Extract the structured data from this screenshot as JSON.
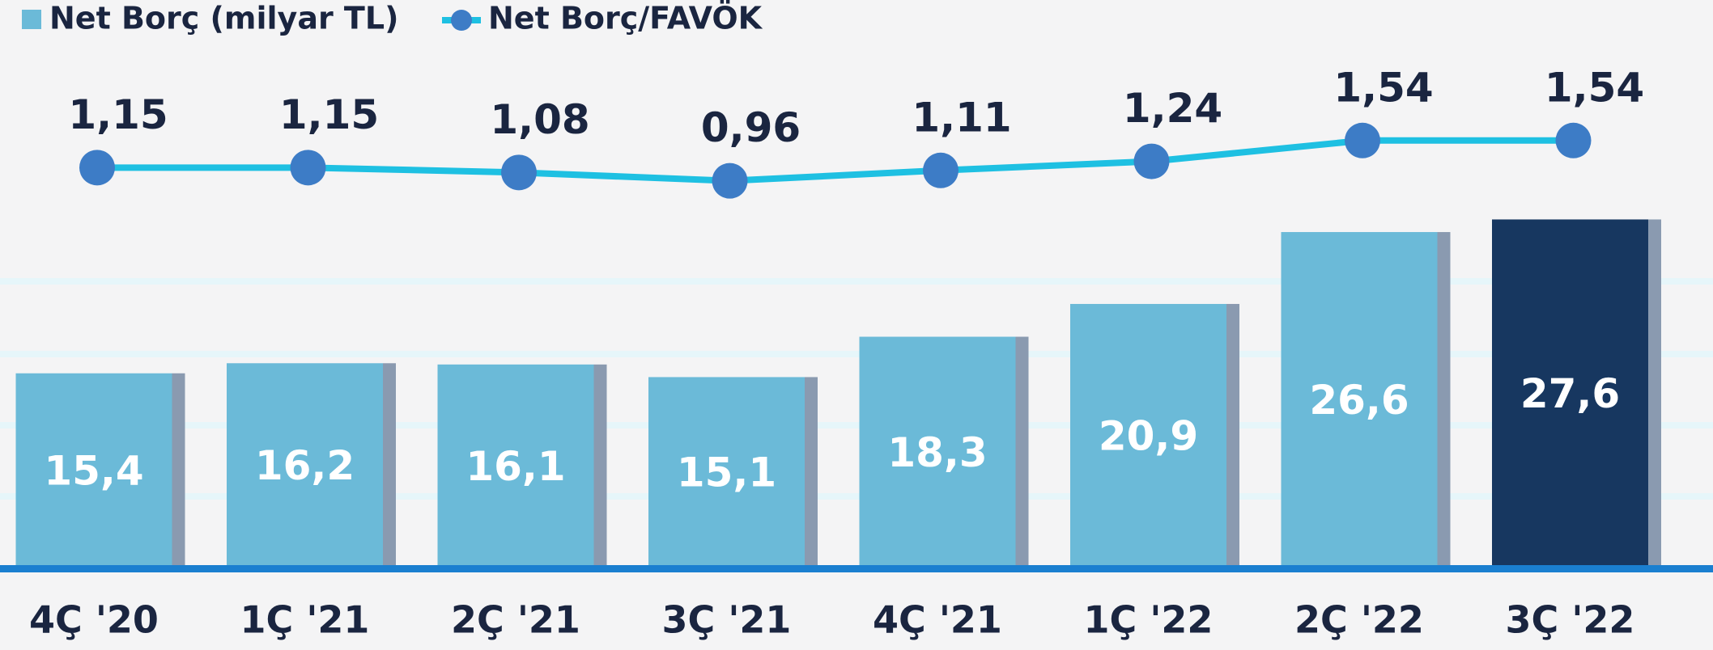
{
  "chart_data": {
    "type": "bar",
    "categories": [
      "4Ç '20",
      "1Ç '21",
      "2Ç '21",
      "3Ç '21",
      "4Ç '21",
      "1Ç '22",
      "2Ç '22",
      "3Ç '22"
    ],
    "series": [
      {
        "name": "Net Borç (milyar TL)",
        "type": "bar",
        "color": "#6bbad8",
        "colors": [
          "#6bbad8",
          "#6bbad8",
          "#6bbad8",
          "#6bbad8",
          "#6bbad8",
          "#6bbad8",
          "#6bbad8",
          "#173760"
        ],
        "values": [
          15.4,
          16.2,
          16.1,
          15.1,
          18.3,
          20.9,
          26.6,
          27.6
        ],
        "value_labels": [
          "15,4",
          "16,2",
          "16,1",
          "15,1",
          "18,3",
          "20,9",
          "26,6",
          "27,6"
        ]
      },
      {
        "name": "Net Borç/FAVÖK",
        "type": "line",
        "axis": "y2",
        "color": "#1ec0e2",
        "marker_color": "#3d7cc6",
        "values": [
          1.15,
          1.15,
          1.08,
          0.96,
          1.11,
          1.24,
          1.54,
          1.54
        ],
        "value_labels": [
          "1,15",
          "1,15",
          "1,08",
          "0,96",
          "1,11",
          "1,24",
          "1,54",
          "1,54"
        ]
      }
    ],
    "ylim": [
      0,
      45
    ],
    "y2lim": [
      -4.6,
      3.56
    ]
  }
}
